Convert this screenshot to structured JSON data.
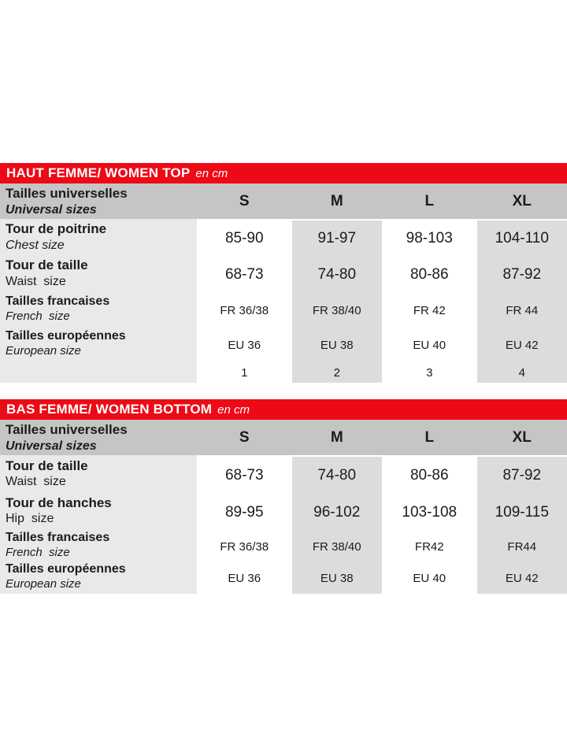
{
  "colors": {
    "accent_red": "#ee0916",
    "header_gray": "#c5c5c6",
    "label_column_gray": "#e9e9ea",
    "value_column_gray": "#dcdcdd",
    "text_dark": "#1b1b1b",
    "white": "#ffffff"
  },
  "tables": [
    {
      "title": "HAUT FEMME/ WOMEN TOP",
      "unit": "en cm",
      "size_header": {
        "label_fr": "Tailles universelles",
        "label_en": "Universal sizes",
        "columns": [
          "S",
          "M",
          "L",
          "XL"
        ]
      },
      "rows": [
        {
          "label_fr": "Tour de poitrine",
          "label_en": "Chest size",
          "values": [
            "85-90",
            "91-97",
            "98-103",
            "104-110"
          ]
        },
        {
          "label_fr": "Tour de taille",
          "label_en": "Waist  size",
          "values": [
            "68-73",
            "74-80",
            "80-86",
            "87-92"
          ]
        },
        {
          "label_fr": "Tailles francaises",
          "label_en": "French  size",
          "values": [
            "FR 36/38",
            "FR 38/40",
            "FR 42",
            "FR 44"
          ]
        },
        {
          "label_fr": "Tailles européennes",
          "label_en": "European size",
          "values": [
            "EU 36",
            "EU 38",
            "EU 40",
            "EU 42"
          ]
        },
        {
          "label_fr": "",
          "label_en": "",
          "values": [
            "1",
            "2",
            "3",
            "4"
          ]
        }
      ]
    },
    {
      "title": "BAS FEMME/ WOMEN BOTTOM",
      "unit": "en cm",
      "size_header": {
        "label_fr": "Tailles universelles",
        "label_en": "Universal sizes",
        "columns": [
          "S",
          "M",
          "L",
          "XL"
        ]
      },
      "rows": [
        {
          "label_fr": "Tour de taille",
          "label_en": "Waist  size",
          "values": [
            "68-73",
            "74-80",
            "80-86",
            "87-92"
          ]
        },
        {
          "label_fr": "Tour de hanches",
          "label_en": "Hip  size",
          "values": [
            "89-95",
            "96-102",
            "103-108",
            "109-115"
          ]
        },
        {
          "label_fr": "Tailles francaises",
          "label_en": "French  size",
          "values": [
            "FR 36/38",
            "FR 38/40",
            "FR42",
            "FR44"
          ]
        },
        {
          "label_fr": "Tailles européennes",
          "label_en": "European size",
          "values": [
            "EU 36",
            "EU 38",
            "EU 40",
            "EU 42"
          ]
        }
      ]
    }
  ]
}
